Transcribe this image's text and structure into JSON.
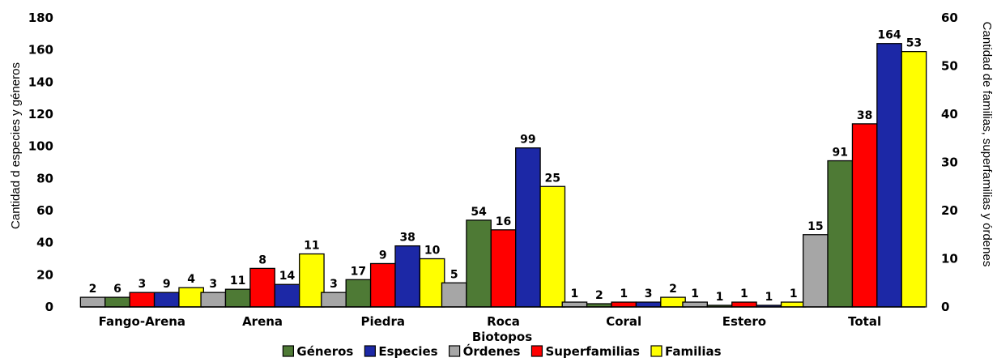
{
  "chart_data": {
    "type": "bar",
    "xlabel": "Biotopos",
    "ylabel_left": "Cantidad d especies y géneros",
    "ylabel_right": "Cantidad de familias, superfamilias y órdenes",
    "ylim_left": [
      0,
      180
    ],
    "ylim_right": [
      0,
      60
    ],
    "yticks_left": [
      0,
      20,
      40,
      60,
      80,
      100,
      120,
      140,
      160,
      180
    ],
    "yticks_right": [
      0,
      10,
      20,
      30,
      40,
      50,
      60
    ],
    "legend_position": "bottom",
    "categories": [
      "Fango-Arena",
      "Arena",
      "Piedra",
      "Roca",
      "Coral",
      "Estero",
      "Total"
    ],
    "series_order": [
      "Órdenes",
      "Géneros",
      "Superfamilias",
      "Especies",
      "Familias"
    ],
    "series": [
      {
        "name": "Géneros",
        "axis": "left",
        "color": "#4E7A35",
        "values": [
          6,
          11,
          17,
          54,
          2,
          1,
          91
        ]
      },
      {
        "name": "Especies",
        "axis": "left",
        "color": "#1C28A6",
        "values": [
          9,
          14,
          38,
          99,
          3,
          1,
          164
        ]
      },
      {
        "name": "Órdenes",
        "axis": "right",
        "color": "#A6A6A6",
        "values": [
          2,
          3,
          3,
          5,
          1,
          1,
          15
        ]
      },
      {
        "name": "Superfamilias",
        "axis": "right",
        "color": "#FF0000",
        "values": [
          3,
          8,
          9,
          16,
          1,
          1,
          38
        ]
      },
      {
        "name": "Familias",
        "axis": "right",
        "color": "#FFFF00",
        "values": [
          4,
          11,
          10,
          25,
          2,
          1,
          53
        ]
      }
    ],
    "legend_order": [
      "Géneros",
      "Especies",
      "Órdenes",
      "Superfamilias",
      "Familias"
    ]
  }
}
